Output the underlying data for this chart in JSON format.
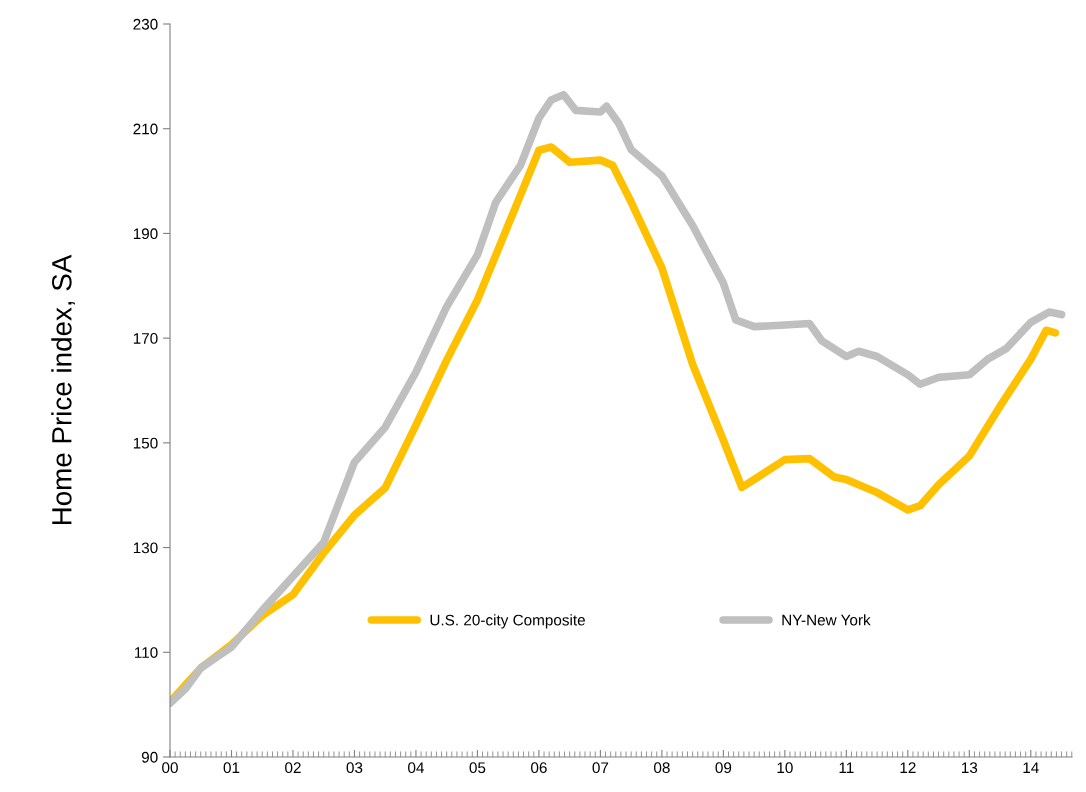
{
  "chart_data": {
    "type": "line",
    "ylabel": "Home Price index, SA",
    "xlim": [
      0,
      14.67
    ],
    "xticks": [
      {
        "value": 0,
        "label": "00"
      },
      {
        "value": 1,
        "label": "01"
      },
      {
        "value": 2,
        "label": "02"
      },
      {
        "value": 3,
        "label": "03"
      },
      {
        "value": 4,
        "label": "04"
      },
      {
        "value": 5,
        "label": "05"
      },
      {
        "value": 6,
        "label": "06"
      },
      {
        "value": 7,
        "label": "07"
      },
      {
        "value": 8,
        "label": "08"
      },
      {
        "value": 9,
        "label": "09"
      },
      {
        "value": 10,
        "label": "10"
      },
      {
        "value": 11,
        "label": "11"
      },
      {
        "value": 12,
        "label": "12"
      },
      {
        "value": 13,
        "label": "13"
      },
      {
        "value": 14,
        "label": "14"
      }
    ],
    "ylim": [
      90,
      230
    ],
    "yticks": [
      90,
      110,
      130,
      150,
      170,
      190,
      210,
      230
    ],
    "grid": false,
    "legend": "center",
    "marker": "none",
    "line_style": "solid",
    "series": [
      {
        "name": "U.S. 20-city Composite",
        "color": "#ffc000",
        "x": [
          0,
          0.5,
          1,
          1.5,
          2,
          2.5,
          3,
          3.5,
          4,
          4.5,
          5,
          5.5,
          6,
          6.2,
          6.5,
          7,
          7.2,
          7.5,
          8,
          8.5,
          9,
          9.3,
          9.5,
          10,
          10.4,
          10.8,
          11,
          11.5,
          12,
          12.2,
          12.5,
          13,
          13.5,
          14,
          14.25,
          14.4
        ],
        "values": [
          100.5,
          107,
          111.5,
          117,
          121,
          129,
          136.2,
          141.4,
          153.4,
          165.8,
          177.3,
          191.6,
          205.9,
          206.5,
          203.6,
          204,
          203,
          196,
          183.4,
          165,
          150.5,
          141.5,
          143,
          146.8,
          147,
          143.5,
          143,
          140.5,
          137.2,
          138,
          142,
          147.5,
          157,
          166,
          171.5,
          171
        ]
      },
      {
        "name": "NY-New York",
        "color": "#bfbfbf",
        "x": [
          0,
          0.25,
          0.5,
          1,
          1.5,
          2,
          2.5,
          3,
          3.5,
          4,
          4.5,
          5,
          5.3,
          5.7,
          6,
          6.2,
          6.4,
          6.6,
          7,
          7.1,
          7.3,
          7.5,
          8,
          8.5,
          9,
          9.2,
          9.5,
          10,
          10.4,
          10.6,
          11,
          11.2,
          11.5,
          12,
          12.2,
          12.5,
          13,
          13.3,
          13.6,
          14,
          14.3,
          14.5
        ],
        "values": [
          100.3,
          103,
          107,
          111,
          118,
          124.5,
          131,
          146.3,
          153,
          163.5,
          176,
          185.9,
          196,
          203,
          212,
          215.5,
          216.5,
          213.5,
          213.2,
          214.3,
          211,
          206,
          201,
          191.5,
          180.5,
          173.5,
          172.2,
          172.5,
          172.8,
          169.5,
          166.5,
          167.5,
          166.5,
          163,
          161.2,
          162.5,
          163,
          166,
          168,
          173,
          175,
          174.5
        ]
      }
    ]
  }
}
